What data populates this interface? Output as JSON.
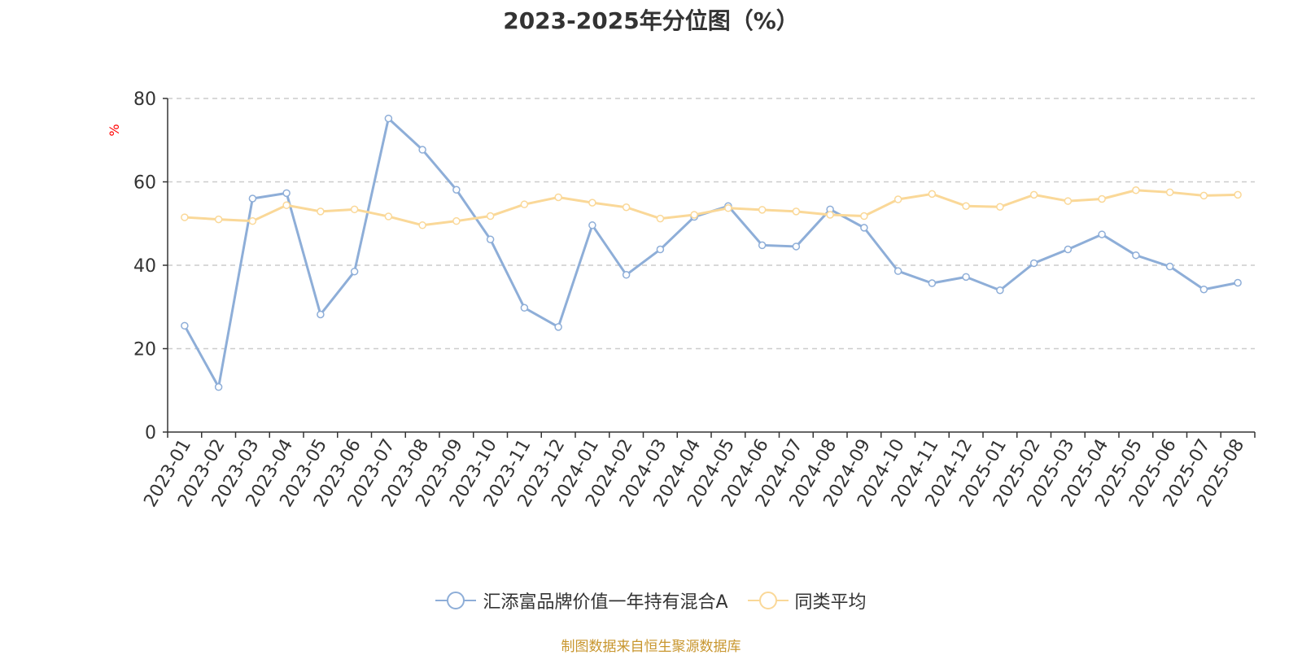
{
  "chart_data": {
    "type": "line",
    "title": "2023-2025年分位图（%）",
    "ylabel": "%",
    "xlabel": "",
    "ylim": [
      0,
      80
    ],
    "yticks": [
      0,
      20,
      40,
      60,
      80
    ],
    "grid": true,
    "legend_position": "bottom",
    "categories": [
      "2023-01",
      "2023-02",
      "2023-03",
      "2023-04",
      "2023-05",
      "2023-06",
      "2023-07",
      "2023-08",
      "2023-09",
      "2023-10",
      "2023-11",
      "2023-12",
      "2024-01",
      "2024-02",
      "2024-03",
      "2024-04",
      "2024-05",
      "2024-06",
      "2024-07",
      "2024-08",
      "2024-09",
      "2024-10",
      "2024-11",
      "2024-12",
      "2025-01",
      "2025-02",
      "2025-03",
      "2025-04",
      "2025-05",
      "2025-06",
      "2025-07",
      "2025-08"
    ],
    "series": [
      {
        "name": "汇添富品牌价值一年持有混合A",
        "color": "#8eaed8",
        "values": [
          25.5,
          10.8,
          56.0,
          57.3,
          28.2,
          38.5,
          75.2,
          67.7,
          58.1,
          46.2,
          29.8,
          25.2,
          49.6,
          37.7,
          43.8,
          51.6,
          54.2,
          44.8,
          44.5,
          53.4,
          49.0,
          38.6,
          35.7,
          37.2,
          34.0,
          40.5,
          43.8,
          47.4,
          42.4,
          39.7,
          34.2,
          35.8
        ]
      },
      {
        "name": "同类平均",
        "color": "#fad898",
        "values": [
          51.5,
          51.0,
          50.6,
          54.4,
          52.9,
          53.4,
          51.7,
          49.6,
          50.6,
          51.8,
          54.6,
          56.3,
          55.0,
          53.9,
          51.2,
          52.1,
          53.7,
          53.3,
          52.9,
          52.1,
          51.8,
          55.8,
          57.1,
          54.2,
          54.0,
          56.9,
          55.4,
          55.9,
          58.0,
          57.5,
          56.7,
          56.9
        ]
      }
    ]
  },
  "source_text": "制图数据来自恒生聚源数据库"
}
